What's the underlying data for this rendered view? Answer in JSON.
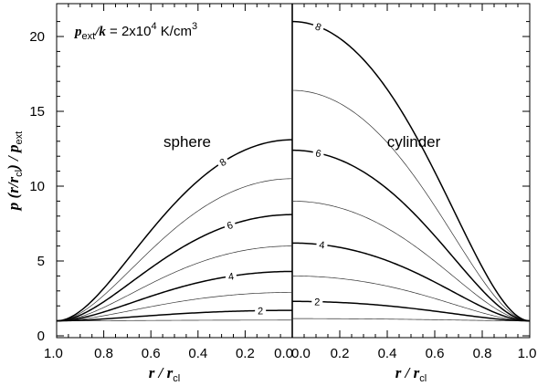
{
  "chart_data": {
    "type": "line",
    "annotation": {
      "var_p": "p",
      "sub_ext": "ext",
      "slash_k": "/k",
      "equals": " = 2x10",
      "exp": "4",
      "units": " K/cm",
      "units_exp": "3"
    },
    "ylabel": {
      "p": "p",
      "mid": " (r/r",
      "sub_cl": "cl",
      "close": ") / p",
      "sub_ext": "ext"
    },
    "xlabel": {
      "r": "r / r",
      "sub_cl": "cl"
    },
    "ylim": [
      0,
      22
    ],
    "y_ticks": [
      0,
      5,
      10,
      15,
      20
    ],
    "panels": [
      {
        "name": "sphere",
        "label": "sphere",
        "xlim": [
          1.0,
          0.0
        ],
        "x_ticks": [
          "1.0",
          "0.8",
          "0.6",
          "0.4",
          "0.2",
          "0.0"
        ],
        "x_tick_values": [
          1.0,
          0.8,
          0.6,
          0.4,
          0.2,
          0.0
        ],
        "series": [
          {
            "name": "1",
            "center": 1.05,
            "thick": false
          },
          {
            "name": "2",
            "center": 1.7,
            "thick": true,
            "label": "2",
            "label_x": 0.135
          },
          {
            "name": "3",
            "center": 2.9,
            "thick": false
          },
          {
            "name": "4",
            "center": 4.3,
            "thick": true,
            "label": "4",
            "label_x": 0.26
          },
          {
            "name": "5",
            "center": 6.0,
            "thick": false
          },
          {
            "name": "6",
            "center": 8.1,
            "thick": true,
            "label": "6",
            "label_x": 0.265
          },
          {
            "name": "7",
            "center": 10.5,
            "thick": false
          },
          {
            "name": "8",
            "center": 13.1,
            "thick": true,
            "label": "8",
            "label_x": 0.295
          }
        ]
      },
      {
        "name": "cylinder",
        "label": "cylinder",
        "xlim": [
          0.0,
          1.0
        ],
        "x_ticks": [
          "0.0",
          "0.2",
          "0.4",
          "0.6",
          "0.8",
          "1.0"
        ],
        "x_tick_values": [
          0.0,
          0.2,
          0.4,
          0.6,
          0.8,
          1.0
        ],
        "series": [
          {
            "name": "1",
            "center": 1.15,
            "thick": false
          },
          {
            "name": "2",
            "center": 2.3,
            "thick": true,
            "label": "2",
            "label_x": 0.105
          },
          {
            "name": "3",
            "center": 4.0,
            "thick": false
          },
          {
            "name": "4",
            "center": 6.2,
            "thick": true,
            "label": "4",
            "label_x": 0.125
          },
          {
            "name": "5",
            "center": 9.0,
            "thick": false
          },
          {
            "name": "6",
            "center": 12.4,
            "thick": true,
            "label": "6",
            "label_x": 0.11
          },
          {
            "name": "7",
            "center": 16.4,
            "thick": false
          },
          {
            "name": "8",
            "center": 21.0,
            "thick": true,
            "label": "8",
            "label_x": 0.11
          }
        ]
      }
    ]
  }
}
